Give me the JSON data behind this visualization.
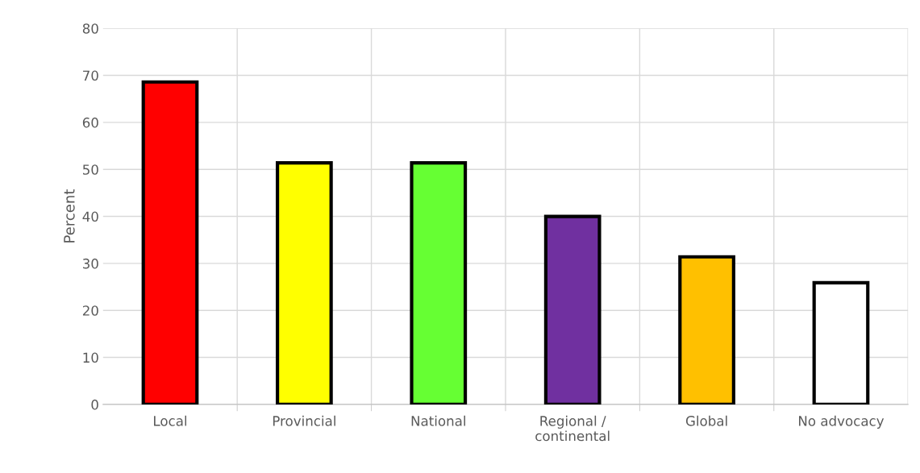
{
  "chart_data": {
    "type": "bar",
    "ylabel": "Percent",
    "categories": [
      "Local",
      "Provincial",
      "National",
      "Regional /\ncontinental",
      "Global",
      "No advocacy"
    ],
    "values": [
      68.6,
      51.4,
      51.4,
      40.0,
      31.4,
      25.9
    ],
    "colors": [
      "#ff0000",
      "#ffff00",
      "#66ff33",
      "#7030a0",
      "#ffc000",
      "#ffffff"
    ],
    "ylim": [
      0,
      80
    ],
    "yticks": [
      0,
      10,
      20,
      30,
      40,
      50,
      60,
      70,
      80
    ],
    "grid": true
  }
}
